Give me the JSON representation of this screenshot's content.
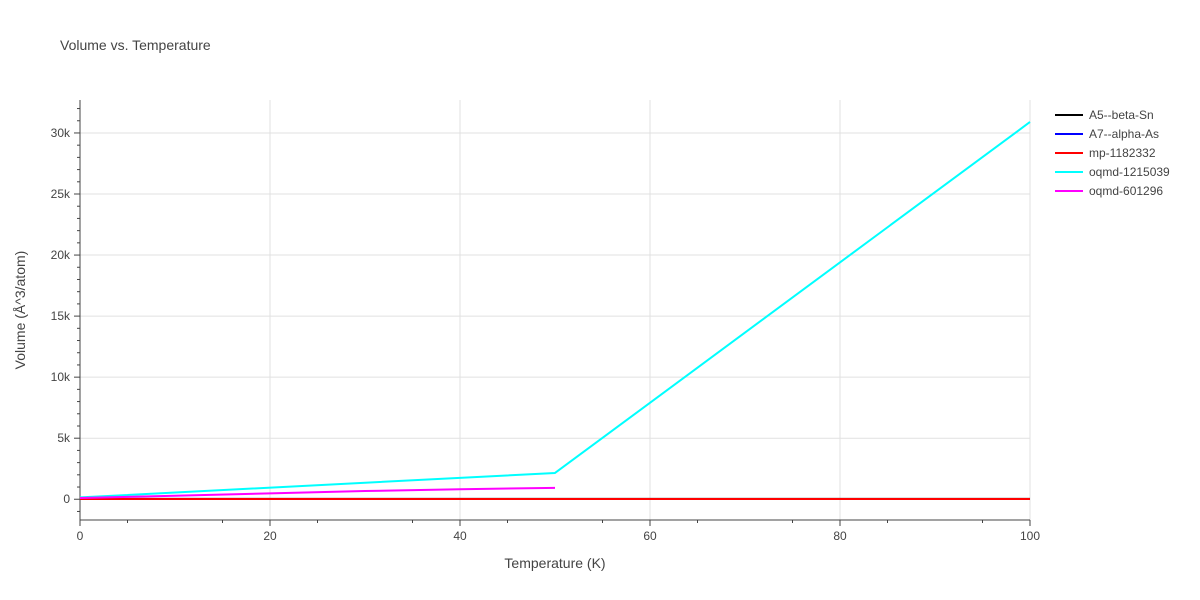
{
  "chart_data": {
    "type": "line",
    "title": "Volume vs. Temperature",
    "xlabel": "Temperature (K)",
    "ylabel": "Volume (Å^3/atom)",
    "xlim": [
      0,
      100
    ],
    "ylim": [
      -1700,
      32700
    ],
    "x_ticks": [
      0,
      20,
      40,
      60,
      80,
      100
    ],
    "x_tick_labels": [
      "0",
      "20",
      "40",
      "60",
      "80",
      "100"
    ],
    "y_ticks": [
      0,
      5000,
      10000,
      15000,
      20000,
      25000,
      30000
    ],
    "y_tick_labels": [
      "0",
      "5k",
      "10k",
      "15k",
      "20k",
      "25k",
      "30k"
    ],
    "grid": true,
    "legend_position": "right",
    "series": [
      {
        "name": "A5--beta-Sn",
        "color": "#000000",
        "x": [
          0,
          100
        ],
        "y": [
          28,
          28
        ]
      },
      {
        "name": "A7--alpha-As",
        "color": "#0000ff",
        "x": [
          0,
          100
        ],
        "y": [
          22,
          22
        ]
      },
      {
        "name": "mp-1182332",
        "color": "#ff0000",
        "x": [
          0,
          100
        ],
        "y": [
          25,
          25
        ]
      },
      {
        "name": "oqmd-1215039",
        "color": "#00ffff",
        "x": [
          0,
          50,
          100
        ],
        "y": [
          150,
          2150,
          30900
        ]
      },
      {
        "name": "oqmd-601296",
        "color": "#ff00ff",
        "x": [
          0,
          10,
          20,
          30,
          40,
          50
        ],
        "y": [
          100,
          290,
          480,
          670,
          820,
          930
        ]
      }
    ]
  }
}
